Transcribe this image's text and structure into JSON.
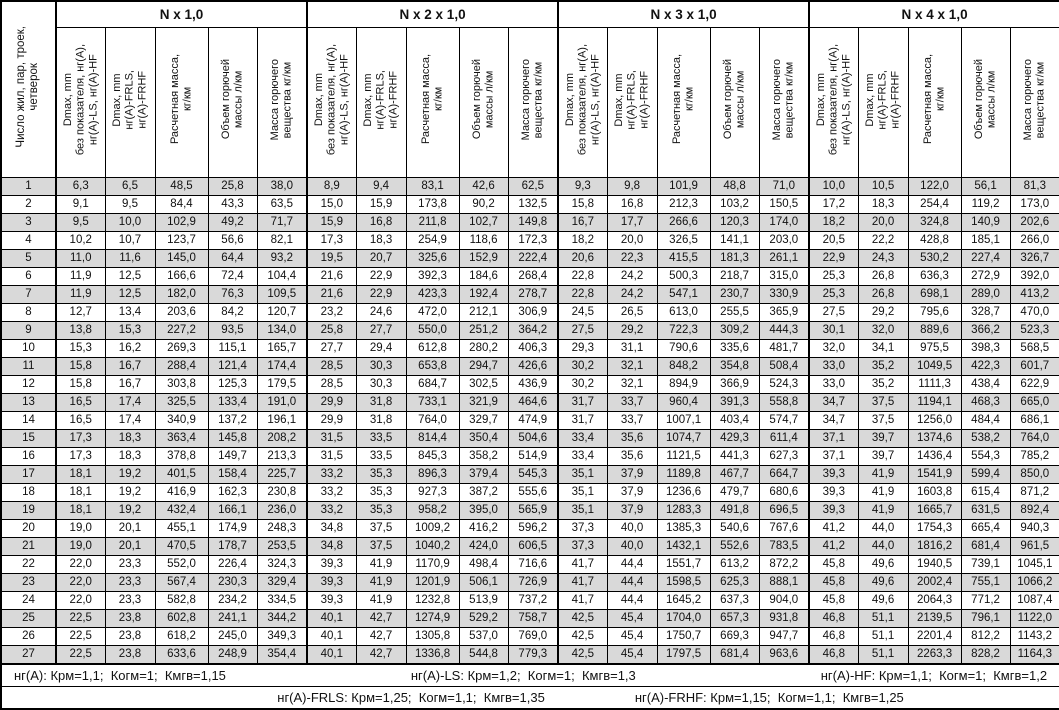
{
  "first_col_header": "Число жил, пар, троек,\nчетверок",
  "groups": [
    {
      "title": "N x 1,0"
    },
    {
      "title": "N x 2 x 1,0"
    },
    {
      "title": "N x 3 x 1,0"
    },
    {
      "title": "N x 4 x 1,0"
    }
  ],
  "sub_headers": [
    "Dmax, mm\nбез показателя, нг(A),\nнг(A)-LS, нг(A)-HF",
    "Dmax, mm\nнг(A)-FRLS,\nнг(A)-FRHF",
    "Расчетная масса,\nкг/км",
    "Объем горючей\nмассы л/км",
    "Масса горючего\nвещества кг/км"
  ],
  "rows": [
    {
      "n": "1",
      "g1": [
        "6,3",
        "6,5",
        "48,5",
        "25,8",
        "38,0"
      ],
      "g2": [
        "8,9",
        "9,4",
        "83,1",
        "42,6",
        "62,5"
      ],
      "g3": [
        "9,3",
        "9,8",
        "101,9",
        "48,8",
        "71,0"
      ],
      "g4": [
        "10,0",
        "10,5",
        "122,0",
        "56,1",
        "81,3"
      ]
    },
    {
      "n": "2",
      "g1": [
        "9,1",
        "9,5",
        "84,4",
        "43,3",
        "63,5"
      ],
      "g2": [
        "15,0",
        "15,9",
        "173,8",
        "90,2",
        "132,5"
      ],
      "g3": [
        "15,8",
        "16,8",
        "212,3",
        "103,2",
        "150,5"
      ],
      "g4": [
        "17,2",
        "18,3",
        "254,4",
        "119,2",
        "173,0"
      ]
    },
    {
      "n": "3",
      "g1": [
        "9,5",
        "10,0",
        "102,9",
        "49,2",
        "71,7"
      ],
      "g2": [
        "15,9",
        "16,8",
        "211,8",
        "102,7",
        "149,8"
      ],
      "g3": [
        "16,7",
        "17,7",
        "266,6",
        "120,3",
        "174,0"
      ],
      "g4": [
        "18,2",
        "20,0",
        "324,8",
        "140,9",
        "202,6"
      ]
    },
    {
      "n": "4",
      "g1": [
        "10,2",
        "10,7",
        "123,7",
        "56,6",
        "82,1"
      ],
      "g2": [
        "17,3",
        "18,3",
        "254,9",
        "118,6",
        "172,3"
      ],
      "g3": [
        "18,2",
        "20,0",
        "326,5",
        "141,1",
        "203,0"
      ],
      "g4": [
        "20,5",
        "22,2",
        "428,8",
        "185,1",
        "266,0"
      ]
    },
    {
      "n": "5",
      "g1": [
        "11,0",
        "11,6",
        "145,0",
        "64,4",
        "93,2"
      ],
      "g2": [
        "19,5",
        "20,7",
        "325,6",
        "152,9",
        "222,4"
      ],
      "g3": [
        "20,6",
        "22,3",
        "415,5",
        "181,3",
        "261,1"
      ],
      "g4": [
        "22,9",
        "24,3",
        "530,2",
        "227,4",
        "326,7"
      ]
    },
    {
      "n": "6",
      "g1": [
        "11,9",
        "12,5",
        "166,6",
        "72,4",
        "104,4"
      ],
      "g2": [
        "21,6",
        "22,9",
        "392,3",
        "184,6",
        "268,4"
      ],
      "g3": [
        "22,8",
        "24,2",
        "500,3",
        "218,7",
        "315,0"
      ],
      "g4": [
        "25,3",
        "26,8",
        "636,3",
        "272,9",
        "392,0"
      ]
    },
    {
      "n": "7",
      "g1": [
        "11,9",
        "12,5",
        "182,0",
        "76,3",
        "109,5"
      ],
      "g2": [
        "21,6",
        "22,9",
        "423,3",
        "192,4",
        "278,7"
      ],
      "g3": [
        "22,8",
        "24,2",
        "547,1",
        "230,7",
        "330,9"
      ],
      "g4": [
        "25,3",
        "26,8",
        "698,1",
        "289,0",
        "413,2"
      ]
    },
    {
      "n": "8",
      "g1": [
        "12,7",
        "13,4",
        "203,6",
        "84,2",
        "120,7"
      ],
      "g2": [
        "23,2",
        "24,6",
        "472,0",
        "212,1",
        "306,9"
      ],
      "g3": [
        "24,5",
        "26,5",
        "613,0",
        "255,5",
        "365,9"
      ],
      "g4": [
        "27,5",
        "29,2",
        "795,6",
        "328,7",
        "470,0"
      ]
    },
    {
      "n": "9",
      "g1": [
        "13,8",
        "15,3",
        "227,2",
        "93,5",
        "134,0"
      ],
      "g2": [
        "25,8",
        "27,7",
        "550,0",
        "251,2",
        "364,2"
      ],
      "g3": [
        "27,5",
        "29,2",
        "722,3",
        "309,2",
        "444,3"
      ],
      "g4": [
        "30,1",
        "32,0",
        "889,6",
        "366,2",
        "523,3"
      ]
    },
    {
      "n": "10",
      "g1": [
        "15,3",
        "16,2",
        "269,3",
        "115,1",
        "165,7"
      ],
      "g2": [
        "27,7",
        "29,4",
        "612,8",
        "280,2",
        "406,3"
      ],
      "g3": [
        "29,3",
        "31,1",
        "790,6",
        "335,6",
        "481,7"
      ],
      "g4": [
        "32,0",
        "34,1",
        "975,5",
        "398,3",
        "568,5"
      ]
    },
    {
      "n": "11",
      "g1": [
        "15,8",
        "16,7",
        "288,4",
        "121,4",
        "174,4"
      ],
      "g2": [
        "28,5",
        "30,3",
        "653,8",
        "294,7",
        "426,6"
      ],
      "g3": [
        "30,2",
        "32,1",
        "848,2",
        "354,8",
        "508,4"
      ],
      "g4": [
        "33,0",
        "35,2",
        "1049,5",
        "422,3",
        "601,7"
      ]
    },
    {
      "n": "12",
      "g1": [
        "15,8",
        "16,7",
        "303,8",
        "125,3",
        "179,5"
      ],
      "g2": [
        "28,5",
        "30,3",
        "684,7",
        "302,5",
        "436,9"
      ],
      "g3": [
        "30,2",
        "32,1",
        "894,9",
        "366,9",
        "524,3"
      ],
      "g4": [
        "33,0",
        "35,2",
        "1111,3",
        "438,4",
        "622,9"
      ]
    },
    {
      "n": "13",
      "g1": [
        "16,5",
        "17,4",
        "325,5",
        "133,4",
        "191,0"
      ],
      "g2": [
        "29,9",
        "31,8",
        "733,1",
        "321,9",
        "464,6"
      ],
      "g3": [
        "31,7",
        "33,7",
        "960,4",
        "391,3",
        "558,8"
      ],
      "g4": [
        "34,7",
        "37,5",
        "1194,1",
        "468,3",
        "665,0"
      ]
    },
    {
      "n": "14",
      "g1": [
        "16,5",
        "17,4",
        "340,9",
        "137,2",
        "196,1"
      ],
      "g2": [
        "29,9",
        "31,8",
        "764,0",
        "329,7",
        "474,9"
      ],
      "g3": [
        "31,7",
        "33,7",
        "1007,1",
        "403,4",
        "574,7"
      ],
      "g4": [
        "34,7",
        "37,5",
        "1256,0",
        "484,4",
        "686,1"
      ]
    },
    {
      "n": "15",
      "g1": [
        "17,3",
        "18,3",
        "363,4",
        "145,8",
        "208,2"
      ],
      "g2": [
        "31,5",
        "33,5",
        "814,4",
        "350,4",
        "504,6"
      ],
      "g3": [
        "33,4",
        "35,6",
        "1074,7",
        "429,3",
        "611,4"
      ],
      "g4": [
        "37,1",
        "39,7",
        "1374,6",
        "538,2",
        "764,0"
      ]
    },
    {
      "n": "16",
      "g1": [
        "17,3",
        "18,3",
        "378,8",
        "149,7",
        "213,3"
      ],
      "g2": [
        "31,5",
        "33,5",
        "845,3",
        "358,2",
        "514,9"
      ],
      "g3": [
        "33,4",
        "35,6",
        "1121,5",
        "441,3",
        "627,3"
      ],
      "g4": [
        "37,1",
        "39,7",
        "1436,4",
        "554,3",
        "785,2"
      ]
    },
    {
      "n": "17",
      "g1": [
        "18,1",
        "19,2",
        "401,5",
        "158,4",
        "225,7"
      ],
      "g2": [
        "33,2",
        "35,3",
        "896,3",
        "379,4",
        "545,3"
      ],
      "g3": [
        "35,1",
        "37,9",
        "1189,8",
        "467,7",
        "664,7"
      ],
      "g4": [
        "39,3",
        "41,9",
        "1541,9",
        "599,4",
        "850,0"
      ]
    },
    {
      "n": "18",
      "g1": [
        "18,1",
        "19,2",
        "416,9",
        "162,3",
        "230,8"
      ],
      "g2": [
        "33,2",
        "35,3",
        "927,3",
        "387,2",
        "555,6"
      ],
      "g3": [
        "35,1",
        "37,9",
        "1236,6",
        "479,7",
        "680,6"
      ],
      "g4": [
        "39,3",
        "41,9",
        "1603,8",
        "615,4",
        "871,2"
      ]
    },
    {
      "n": "19",
      "g1": [
        "18,1",
        "19,2",
        "432,4",
        "166,1",
        "236,0"
      ],
      "g2": [
        "33,2",
        "35,3",
        "958,2",
        "395,0",
        "565,9"
      ],
      "g3": [
        "35,1",
        "37,9",
        "1283,3",
        "491,8",
        "696,5"
      ],
      "g4": [
        "39,3",
        "41,9",
        "1665,7",
        "631,5",
        "892,4"
      ]
    },
    {
      "n": "20",
      "g1": [
        "19,0",
        "20,1",
        "455,1",
        "174,9",
        "248,3"
      ],
      "g2": [
        "34,8",
        "37,5",
        "1009,2",
        "416,2",
        "596,2"
      ],
      "g3": [
        "37,3",
        "40,0",
        "1385,3",
        "540,6",
        "767,6"
      ],
      "g4": [
        "41,2",
        "44,0",
        "1754,3",
        "665,4",
        "940,3"
      ]
    },
    {
      "n": "21",
      "g1": [
        "19,0",
        "20,1",
        "470,5",
        "178,7",
        "253,5"
      ],
      "g2": [
        "34,8",
        "37,5",
        "1040,2",
        "424,0",
        "606,5"
      ],
      "g3": [
        "37,3",
        "40,0",
        "1432,1",
        "552,6",
        "783,5"
      ],
      "g4": [
        "41,2",
        "44,0",
        "1816,2",
        "681,4",
        "961,5"
      ]
    },
    {
      "n": "22",
      "g1": [
        "22,0",
        "23,3",
        "552,0",
        "226,4",
        "324,3"
      ],
      "g2": [
        "39,3",
        "41,9",
        "1170,9",
        "498,4",
        "716,6"
      ],
      "g3": [
        "41,7",
        "44,4",
        "1551,7",
        "613,2",
        "872,2"
      ],
      "g4": [
        "45,8",
        "49,6",
        "1940,5",
        "739,1",
        "1045,1"
      ]
    },
    {
      "n": "23",
      "g1": [
        "22,0",
        "23,3",
        "567,4",
        "230,3",
        "329,4"
      ],
      "g2": [
        "39,3",
        "41,9",
        "1201,9",
        "506,1",
        "726,9"
      ],
      "g3": [
        "41,7",
        "44,4",
        "1598,5",
        "625,3",
        "888,1"
      ],
      "g4": [
        "45,8",
        "49,6",
        "2002,4",
        "755,1",
        "1066,2"
      ]
    },
    {
      "n": "24",
      "g1": [
        "22,0",
        "23,3",
        "582,8",
        "234,2",
        "334,5"
      ],
      "g2": [
        "39,3",
        "41,9",
        "1232,8",
        "513,9",
        "737,2"
      ],
      "g3": [
        "41,7",
        "44,4",
        "1645,2",
        "637,3",
        "904,0"
      ],
      "g4": [
        "45,8",
        "49,6",
        "2064,3",
        "771,2",
        "1087,4"
      ]
    },
    {
      "n": "25",
      "g1": [
        "22,5",
        "23,8",
        "602,8",
        "241,1",
        "344,2"
      ],
      "g2": [
        "40,1",
        "42,7",
        "1274,9",
        "529,2",
        "758,7"
      ],
      "g3": [
        "42,5",
        "45,4",
        "1704,0",
        "657,3",
        "931,8"
      ],
      "g4": [
        "46,8",
        "51,1",
        "2139,5",
        "796,1",
        "1122,0"
      ]
    },
    {
      "n": "26",
      "g1": [
        "22,5",
        "23,8",
        "618,2",
        "245,0",
        "349,3"
      ],
      "g2": [
        "40,1",
        "42,7",
        "1305,8",
        "537,0",
        "769,0"
      ],
      "g3": [
        "42,5",
        "45,4",
        "1750,7",
        "669,3",
        "947,7"
      ],
      "g4": [
        "46,8",
        "51,1",
        "2201,4",
        "812,2",
        "1143,2"
      ]
    },
    {
      "n": "27",
      "g1": [
        "22,5",
        "23,8",
        "633,6",
        "248,9",
        "354,4"
      ],
      "g2": [
        "40,1",
        "42,7",
        "1336,8",
        "544,8",
        "779,3"
      ],
      "g3": [
        "42,5",
        "45,4",
        "1797,5",
        "681,4",
        "963,6"
      ],
      "g4": [
        "46,8",
        "51,1",
        "2263,3",
        "828,2",
        "1164,3"
      ]
    }
  ],
  "footer": {
    "line1": [
      "нг(A): Крм=1,1;  Когм=1;  Кмгв=1,15",
      "нг(A)-LS: Крм=1,2;  Когм=1;  Кмгв=1,3",
      "нг(A)-HF: Крм=1,1;  Когм=1;  Кмгв=1,2"
    ],
    "line2": [
      "нг(A)-FRLS: Крм=1,25;  Когм=1,1;  Кмгв=1,35",
      "нг(A)-FRHF: Крм=1,15;  Когм=1,1;  Кмгв=1,25"
    ]
  },
  "colors": {
    "row_shading": "#d9d9d9",
    "border": "#000000",
    "background": "#ffffff"
  }
}
